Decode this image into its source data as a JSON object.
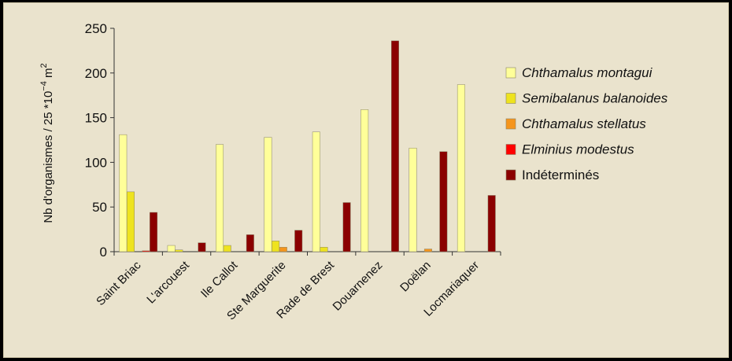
{
  "chart_data": {
    "type": "bar",
    "title": "",
    "xlabel": "",
    "ylabel": "Nb d'organismes / 25 *10",
    "ylabel_sup": "−4",
    "ylabel_unit": " m",
    "ylabel_sup2": "2",
    "ylim": [
      0,
      250
    ],
    "yticks": [
      0,
      50,
      100,
      150,
      200,
      250
    ],
    "categories": [
      "Saint Briac",
      "L'arcouest",
      "Ile Callot",
      "Ste Marguerite",
      "Rade de Brest",
      "Douarnenez",
      "Doëlan",
      "Locmariaquer"
    ],
    "series": [
      {
        "name": "Chthamalus montagui",
        "italic": true,
        "color": "#ffff99",
        "values": [
          131,
          7,
          120,
          128,
          134,
          159,
          116,
          187
        ]
      },
      {
        "name": "Semibalanus balanoides",
        "italic": true,
        "color": "#eee31f",
        "values": [
          67,
          2,
          7,
          12,
          5,
          0,
          0,
          0
        ]
      },
      {
        "name": "Chthamalus stellatus",
        "italic": true,
        "color": "#f5951c",
        "values": [
          0,
          0,
          0,
          5,
          0,
          0,
          3,
          0
        ]
      },
      {
        "name": "Elminius modestus",
        "italic": true,
        "color": "#ff0000",
        "values": [
          1,
          0,
          0,
          0,
          0,
          0,
          0,
          0
        ]
      },
      {
        "name": "Indéterminés",
        "italic": false,
        "color": "#8b0000",
        "values": [
          44,
          10,
          19,
          24,
          55,
          236,
          112,
          63
        ]
      }
    ],
    "grid": false,
    "legend": "right"
  }
}
